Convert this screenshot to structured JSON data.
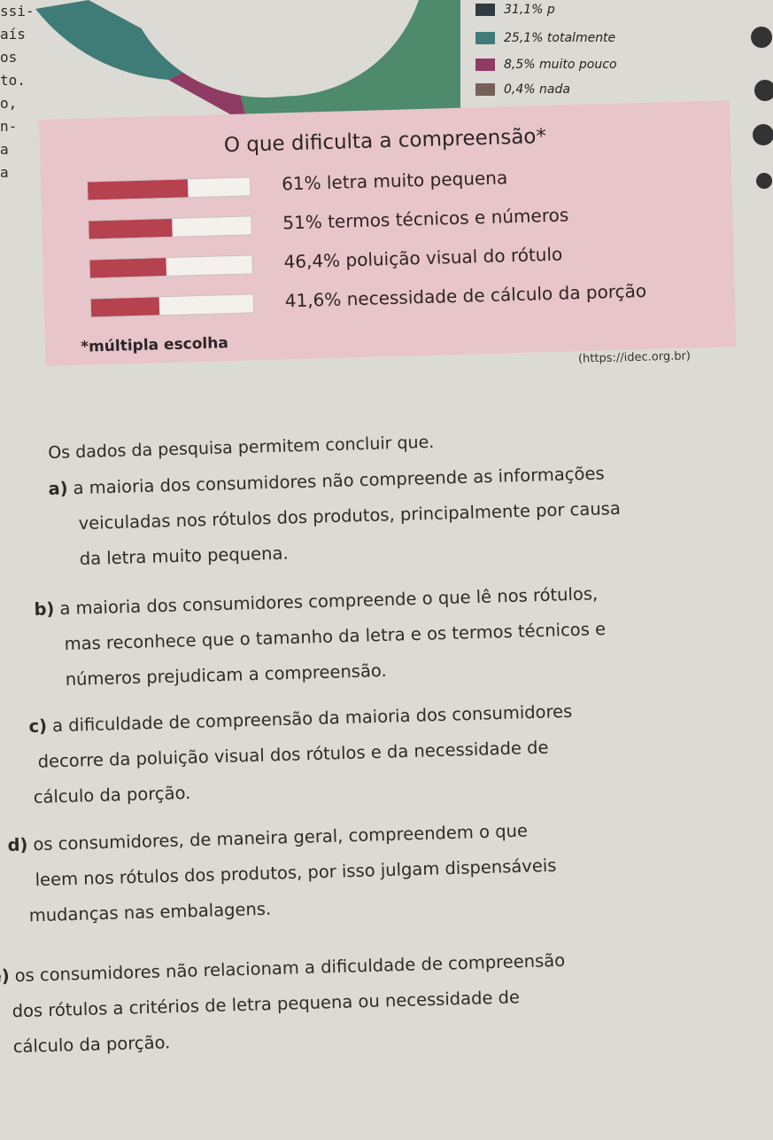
{
  "margin_fragments": [
    "ssi-",
    "aís",
    "os",
    "to.",
    "o,",
    "n-",
    "a",
    "a"
  ],
  "donut": {
    "legend": [
      {
        "label": "31,1% p",
        "color": "#2f3a40"
      },
      {
        "label": "25,1% totalmente",
        "color": "#3f7c78"
      },
      {
        "label": "8,5% muito pouco",
        "color": "#8f3b63"
      },
      {
        "label": "0,4% nada",
        "color": "#76605a"
      }
    ]
  },
  "panel": {
    "title": "O que dificulta a compreensão*",
    "note": "*múltipla escolha"
  },
  "chart_data": {
    "type": "bar",
    "title": "O que dificulta a compreensão*",
    "categories": [
      "61% letra muito pequena",
      "51% termos técnicos e números",
      "46,4% poluição visual do rótulo",
      "41,6% necessidade de cálculo da porção"
    ],
    "values": [
      61,
      51,
      46.4,
      41.6
    ],
    "xlim": [
      0,
      100
    ],
    "bar_color": "#b6414f",
    "track_color": "#f3f0ee"
  },
  "source": "(https://idec.org.br)",
  "question": {
    "stem": "Os dados da pesquisa permitem concluir que.",
    "options": [
      {
        "letter": "a)",
        "lines": [
          "a maioria dos consumidores não compreende as informações",
          "veiculadas nos rótulos dos produtos, principalmente por causa",
          "da letra muito pequena."
        ]
      },
      {
        "letter": "b)",
        "lines": [
          "a maioria dos consumidores compreende o que lê nos rótulos,",
          "mas reconhece que o tamanho da letra e os termos técnicos e",
          "números prejudicam a compreensão."
        ]
      },
      {
        "letter": "c)",
        "lines": [
          "a dificuldade de compreensão da maioria dos consumidores",
          "decorre da poluição visual dos rótulos e da necessidade de",
          "cálculo da porção."
        ]
      },
      {
        "letter": "d)",
        "lines": [
          "os consumidores, de maneira geral, compreendem o que",
          "leem nos rótulos dos produtos, por isso julgam dispensáveis",
          "mudanças nas  embalagens."
        ]
      },
      {
        "letter": "e)",
        "lines": [
          "os consumidores não relacionam a dificuldade de compreensão",
          "dos rótulos a critérios de letra pequena ou necessidade de",
          "cálculo da porção."
        ]
      }
    ]
  }
}
